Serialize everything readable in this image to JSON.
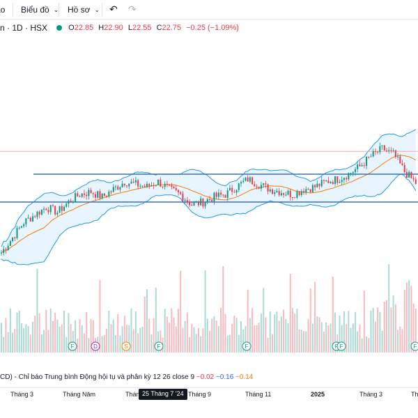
{
  "toolbar": {
    "partial_tab": "ảo",
    "chart_menu": "Biểu đồ",
    "profile_menu": "Hồ sơ",
    "undo_icon": "undo-icon",
    "redo_icon": "redo-icon"
  },
  "legend": {
    "symbol": "n · 1D · HSX",
    "status_color": "#089981",
    "open_label": "O",
    "open": "22.85",
    "high_label": "H",
    "high": "22.90",
    "low_label": "L",
    "low": "22.55",
    "close_label": "C",
    "close": "22.75",
    "change": "−0.25 (−1.09%)"
  },
  "macd": {
    "label": "CD) - Chỉ báo Trung bình Động hội tụ và phân kỳ",
    "params": "12 26 close 9",
    "v1": "−0.02",
    "v2": "−0.16",
    "v3": "−0.14"
  },
  "time_axis": {
    "ticks": [
      "Tháng 3",
      "Tháng Năm",
      "Tháng",
      "Tháng 9",
      "Tháng 11",
      "2025",
      "Tháng 3",
      "Th"
    ],
    "bold_tick_index": 5,
    "cursor_label": "25 Tháng 7 '24"
  },
  "event_markers": [
    "F",
    "D",
    "S",
    "F",
    "F",
    "F",
    "F",
    "F",
    "F"
  ],
  "colors": {
    "up": "#089981",
    "down": "#f23645",
    "bb": "#2196f3",
    "ma": "#f57c00",
    "upVol": "rgba(8,153,129,0.35)",
    "downVol": "rgba(242,54,69,0.35)"
  },
  "chart_data": {
    "type": "candlestick",
    "description_keys": [
      "price_path",
      "channel_lines",
      "event_markers"
    ],
    "price_path": [
      [
        0,
        20.0
      ],
      [
        5,
        20.6
      ],
      [
        10,
        21.2
      ],
      [
        15,
        21.5
      ],
      [
        20,
        21.8
      ],
      [
        25,
        21.6
      ],
      [
        30,
        22.0
      ],
      [
        35,
        22.3
      ],
      [
        40,
        22.4
      ],
      [
        45,
        22.2
      ],
      [
        50,
        22.5
      ],
      [
        55,
        22.8
      ],
      [
        60,
        22.7
      ],
      [
        65,
        22.6
      ],
      [
        70,
        22.8
      ],
      [
        75,
        22.5
      ],
      [
        80,
        22.3
      ],
      [
        85,
        21.9
      ],
      [
        90,
        22.0
      ],
      [
        95,
        22.2
      ],
      [
        100,
        22.3
      ],
      [
        105,
        22.6
      ],
      [
        110,
        22.9
      ],
      [
        115,
        22.7
      ],
      [
        120,
        22.5
      ],
      [
        125,
        22.4
      ],
      [
        130,
        22.3
      ],
      [
        135,
        22.5
      ],
      [
        140,
        22.6
      ],
      [
        145,
        22.8
      ],
      [
        150,
        22.9
      ],
      [
        155,
        23.1
      ],
      [
        160,
        23.4
      ],
      [
        165,
        23.8
      ],
      [
        170,
        24.1
      ],
      [
        175,
        23.9
      ],
      [
        180,
        23.2
      ],
      [
        185,
        22.75
      ]
    ],
    "resistance": 23.1,
    "support": 22.0,
    "reference_line": 24.0
  }
}
